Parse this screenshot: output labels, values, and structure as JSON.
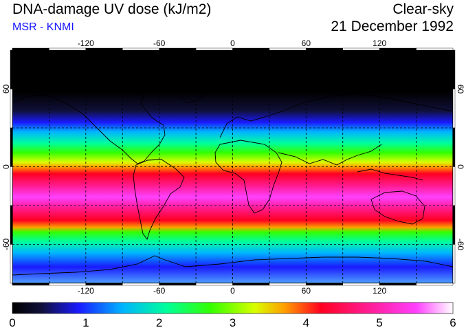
{
  "header": {
    "title": "DNA-damage UV dose (kJ/m2)",
    "subtitle": "MSR - KNMI",
    "sky_condition": "Clear-sky",
    "date": "21 December 1992"
  },
  "colors": {
    "subtitle": "#1515ff",
    "background": "#ffffff"
  },
  "map": {
    "longitude_ticks": [
      -120,
      -60,
      0,
      60,
      120
    ],
    "latitude_ticks": [
      60,
      0,
      -60
    ],
    "grid_longitudes": [
      -150,
      -120,
      -90,
      -60,
      -30,
      0,
      30,
      60,
      90,
      120,
      150
    ],
    "grid_latitudes": [
      60,
      30,
      0,
      -30,
      -60
    ],
    "lon_range": [
      -180,
      180
    ],
    "lat_range": [
      -90,
      90
    ]
  },
  "colorbar": {
    "tick_labels": [
      "0",
      "1",
      "2",
      "3",
      "4",
      "5",
      "6"
    ],
    "range": [
      0,
      6
    ],
    "stops": [
      {
        "value": 0.0,
        "color": "#000000"
      },
      {
        "value": 0.4,
        "color": "#10103a"
      },
      {
        "value": 0.9,
        "color": "#1a1aff"
      },
      {
        "value": 1.5,
        "color": "#00b4ff"
      },
      {
        "value": 2.1,
        "color": "#00ff9a"
      },
      {
        "value": 2.7,
        "color": "#33ff00"
      },
      {
        "value": 3.3,
        "color": "#d8ff00"
      },
      {
        "value": 3.7,
        "color": "#ffa000"
      },
      {
        "value": 4.2,
        "color": "#ff0020"
      },
      {
        "value": 4.8,
        "color": "#ff1a8c"
      },
      {
        "value": 5.5,
        "color": "#ff40ff"
      },
      {
        "value": 6.0,
        "color": "#ffffff"
      }
    ]
  }
}
